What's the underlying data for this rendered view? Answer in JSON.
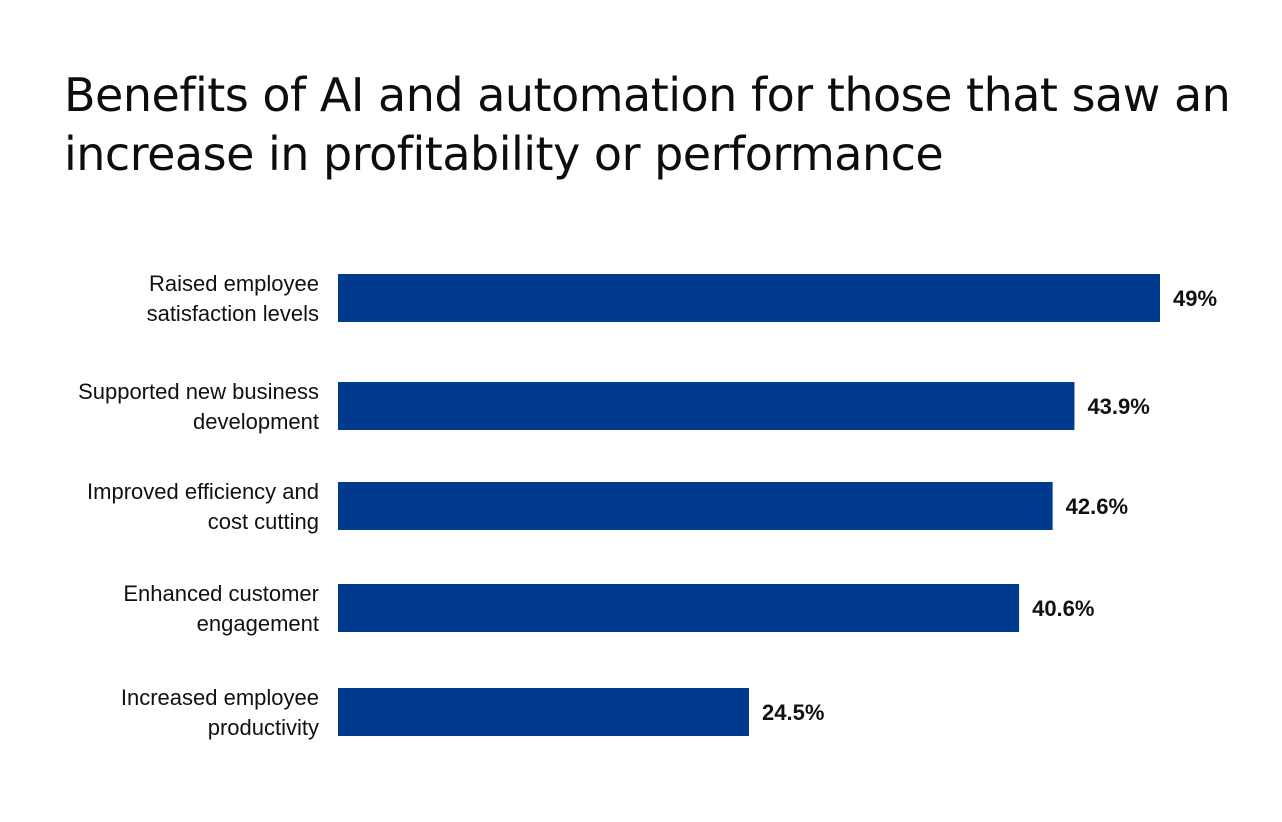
{
  "chart_data": {
    "type": "bar",
    "orientation": "horizontal",
    "title": "Benefits of AI and automation for those that saw an increase in profitability or performance",
    "categories": [
      [
        "Raised employee",
        "satisfaction levels"
      ],
      [
        "Supported new business",
        "development"
      ],
      [
        "Improved efficiency and",
        "cost cutting"
      ],
      [
        "Enhanced customer",
        "engagement"
      ],
      [
        "Increased employee",
        "productivity"
      ]
    ],
    "values": [
      49,
      43.9,
      42.6,
      40.6,
      24.5
    ],
    "value_labels": [
      "49%",
      "43.9%",
      "42.6%",
      "40.6%",
      "24.5%"
    ],
    "xlim": [
      0,
      49
    ],
    "grid": false,
    "legend": "none",
    "bar_color": "#003a8f"
  }
}
